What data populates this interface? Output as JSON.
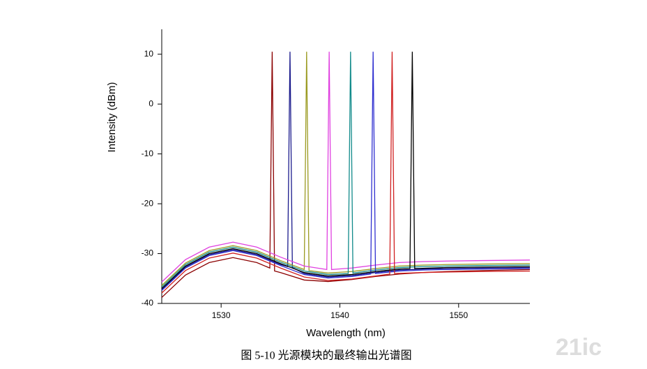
{
  "chart_data": {
    "type": "line",
    "xlabel": "Wavelength (nm)",
    "ylabel": "Intensity (dBm)",
    "caption": "图 5-10 光源模块的最终输出光谱图",
    "watermark": "21ic",
    "xlim": [
      1525,
      1556
    ],
    "xticks": [
      1530,
      1540,
      1550
    ],
    "ylim": [
      -40,
      15
    ],
    "yticks": [
      -40,
      -30,
      -20,
      -10,
      0,
      10
    ],
    "series": [
      {
        "color": "#8b0000",
        "x": [
          1525,
          1527,
          1529,
          1531,
          1533,
          1534.1,
          1534.3,
          1534.5,
          1535,
          1537,
          1539,
          1541,
          1543,
          1545,
          1547,
          1549,
          1552,
          1556
        ],
        "values": [
          -38.8,
          -34.3,
          -31.8,
          -30.8,
          -31.8,
          -32.9,
          10.5,
          -33.5,
          -33.8,
          -35.3,
          -35.6,
          -35.2,
          -34.6,
          -34.1,
          -33.8,
          -33.6,
          -33.4,
          -33.2
        ]
      },
      {
        "color": "#1a1a8c",
        "x": [
          1525,
          1527,
          1529,
          1531,
          1533,
          1535,
          1535.6,
          1535.8,
          1536,
          1537,
          1539,
          1541,
          1543,
          1545,
          1547,
          1549,
          1552,
          1556
        ],
        "values": [
          -37.2,
          -32.7,
          -30.2,
          -29.2,
          -30.2,
          -32.2,
          -32.6,
          10.5,
          -32.8,
          -34,
          -34.7,
          -34.4,
          -33.8,
          -33.3,
          -33.1,
          -33,
          -32.9,
          -32.8
        ]
      },
      {
        "color": "#9a9a20",
        "x": [
          1525,
          1527,
          1529,
          1531,
          1533,
          1535,
          1537,
          1537.2,
          1537.4,
          1539,
          1541,
          1543,
          1545,
          1547,
          1549,
          1552,
          1556
        ],
        "values": [
          -36.4,
          -31.9,
          -29.4,
          -28.4,
          -29.4,
          -31.4,
          -33.2,
          10.5,
          -33.4,
          -33.9,
          -33.6,
          -33,
          -32.5,
          -32.3,
          -32.2,
          -32.1,
          -32
        ]
      },
      {
        "color": "#e040e0",
        "x": [
          1525,
          1527,
          1529,
          1531,
          1533,
          1535,
          1537,
          1538.9,
          1539.1,
          1539.3,
          1541,
          1543,
          1545,
          1547,
          1549,
          1552,
          1556
        ],
        "values": [
          -35.7,
          -31.2,
          -28.7,
          -27.7,
          -28.7,
          -30.7,
          -32.5,
          -33.2,
          10.5,
          -33.2,
          -32.9,
          -32.3,
          -31.8,
          -31.6,
          -31.5,
          -31.4,
          -31.3
        ]
      },
      {
        "color": "#108a8a",
        "x": [
          1525,
          1527,
          1529,
          1531,
          1533,
          1535,
          1537,
          1539,
          1540.7,
          1540.9,
          1541.1,
          1543,
          1545,
          1547,
          1549,
          1552,
          1556
        ],
        "values": [
          -36.7,
          -32.2,
          -29.7,
          -28.7,
          -29.7,
          -31.7,
          -33.5,
          -34.2,
          -34,
          10.5,
          -33.9,
          -33.3,
          -32.8,
          -32.6,
          -32.5,
          -32.4,
          -32.3
        ]
      },
      {
        "color": "#3030d0",
        "x": [
          1525,
          1527,
          1529,
          1531,
          1533,
          1535,
          1537,
          1539,
          1541,
          1542.6,
          1542.8,
          1543,
          1545,
          1547,
          1549,
          1552,
          1556
        ],
        "values": [
          -37.4,
          -32.9,
          -30.4,
          -29.4,
          -30.4,
          -32.4,
          -34.2,
          -34.9,
          -34.6,
          -34.1,
          10.5,
          -34,
          -33.5,
          -33.3,
          -33.2,
          -33.1,
          -33
        ]
      },
      {
        "color": "#d02020",
        "x": [
          1525,
          1527,
          1529,
          1531,
          1533,
          1535,
          1537,
          1539,
          1541,
          1543,
          1544.2,
          1544.4,
          1544.6,
          1547,
          1549,
          1552,
          1556
        ],
        "values": [
          -37.9,
          -33.4,
          -30.9,
          -29.9,
          -30.9,
          -32.9,
          -34.7,
          -35.4,
          -35.1,
          -34.5,
          -34.1,
          10.5,
          -34,
          -33.8,
          -33.7,
          -33.6,
          -33.5
        ]
      },
      {
        "color": "#000000",
        "x": [
          1525,
          1527,
          1529,
          1531,
          1533,
          1535,
          1537,
          1539,
          1541,
          1543,
          1545,
          1545.9,
          1546.1,
          1546.3,
          1549,
          1552,
          1556
        ],
        "values": [
          -37,
          -32.5,
          -30,
          -29,
          -30,
          -32,
          -33.8,
          -34.5,
          -34.2,
          -33.6,
          -33.1,
          -33,
          10.5,
          -33,
          -32.8,
          -32.7,
          -32.6
        ]
      }
    ]
  }
}
